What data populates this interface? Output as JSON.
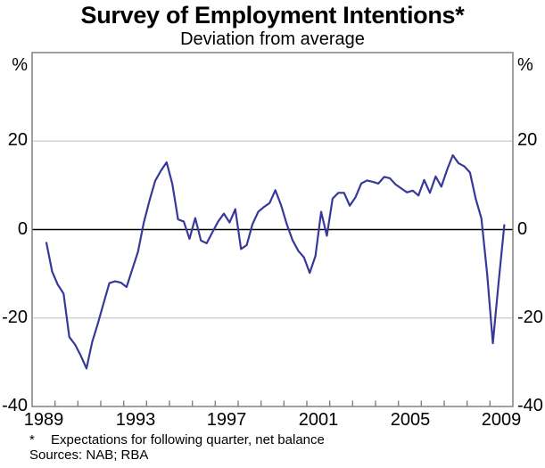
{
  "title": "Survey of Employment Intentions*",
  "subtitle": "Deviation from average",
  "y_axis": {
    "unit": "%",
    "tick_labels": [
      "20",
      "0",
      "-20",
      "-40"
    ],
    "tick_values": [
      20,
      0,
      -20,
      -40
    ]
  },
  "x_axis": {
    "tick_labels": [
      "1989",
      "1993",
      "1997",
      "2001",
      "2005",
      "2009"
    ]
  },
  "footnote": {
    "marker": "*",
    "text": "Expectations for following quarter, net balance"
  },
  "sources": "Sources: NAB; RBA",
  "colors": {
    "line": "#38389B",
    "grid": "#C9C9C9",
    "frame": "#808080",
    "zero_line": "#000000"
  },
  "chart_data": {
    "type": "line",
    "title": "Survey of Employment Intentions*",
    "subtitle": "Deviation from average",
    "series_name": "Employment intentions, deviation from average (net balance)",
    "frequency": "quarterly",
    "start": "1989Q3",
    "end": "2009Q3",
    "start_decimal_year": 1989.625,
    "step_years": 0.25,
    "values": [
      -3,
      -9.5,
      -12.5,
      -14.5,
      -24.3,
      -26,
      -28.5,
      -31.4,
      -25.4,
      -21.2,
      -16.6,
      -12.1,
      -11.7,
      -12,
      -13,
      -9,
      -5,
      1.5,
      6.5,
      11,
      13.3,
      15.2,
      10.3,
      2.3,
      1.8,
      -2.1,
      2.6,
      -2.5,
      -3.1,
      -0.6,
      1.8,
      3.6,
      1.6,
      4.6,
      -4.4,
      -3.5,
      1.2,
      4,
      5.1,
      6,
      8.9,
      5.5,
      1.2,
      -2.4,
      -4.8,
      -6.3,
      -9.8,
      -6,
      4,
      -1.4,
      7,
      8.3,
      8.3,
      5.4,
      7.3,
      10.4,
      11.1,
      10.8,
      10.4,
      11.9,
      11.6,
      10.2,
      9.3,
      8.4,
      8.8,
      7.7,
      11.2,
      8.3,
      12,
      9.7,
      13.5,
      16.8,
      15,
      14.3,
      12.9,
      7,
      2.5,
      -10,
      -25.7,
      -12,
      1
    ],
    "ylabel": "%",
    "ylim": [
      -40,
      40
    ],
    "xlim": [
      1989,
      2010
    ],
    "y_gridlines": [
      20,
      -20
    ],
    "zero_line": true,
    "x_tick_years_start": 1990,
    "x_tick_years_end": 2009,
    "x_labeled_years": [
      1989,
      1993,
      1997,
      2001,
      2005,
      2009
    ],
    "legend_position": "none",
    "grid": "horizontal"
  }
}
